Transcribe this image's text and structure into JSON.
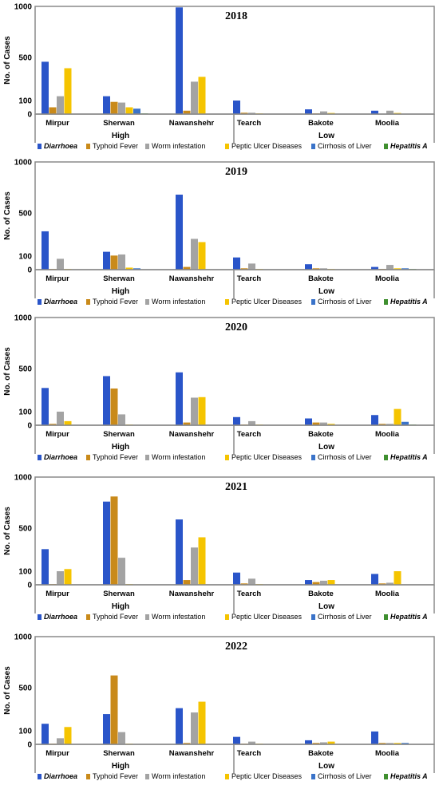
{
  "figure": {
    "ylabel": "No. of Cases",
    "groups": [
      "High",
      "Low"
    ],
    "legend": [
      "Diarrhoea",
      "Typhoid Fever",
      "Worm infestation",
      "Peptic Ulcer Diseases",
      "Cirrhosis of Liver",
      "Hepatitis A"
    ],
    "legend_italic": [
      true,
      false,
      false,
      false,
      false,
      true
    ],
    "colors": [
      "#2a55c9",
      "#c98a1a",
      "#a3a3a3",
      "#f5c400",
      "#3a73c9",
      "#3f8f2f"
    ]
  },
  "chart_data": [
    {
      "type": "bar",
      "title": "2018",
      "ylabel": "No. of Cases",
      "ylim": [
        0,
        1000
      ],
      "yticks": [
        0,
        100,
        500,
        1000
      ],
      "categories": [
        "Mirpur",
        "Sherwan",
        "Nawanshehr",
        "Tearch",
        "Bakote",
        "Moolia"
      ],
      "series": [
        {
          "name": "Diarrhoea",
          "values": [
            460,
            140,
            990,
            100,
            35,
            25
          ]
        },
        {
          "name": "Typhoid Fever",
          "values": [
            50,
            90,
            25,
            10,
            5,
            3
          ]
        },
        {
          "name": "Worm infestation",
          "values": [
            140,
            85,
            275,
            10,
            20,
            25
          ]
        },
        {
          "name": "Peptic Ulcer Diseases",
          "values": [
            400,
            50,
            320,
            5,
            8,
            8
          ]
        },
        {
          "name": "Cirrhosis of Liver",
          "values": [
            0,
            40,
            0,
            0,
            0,
            0
          ]
        },
        {
          "name": "Hepatitis A",
          "values": [
            0,
            5,
            0,
            0,
            0,
            0
          ]
        }
      ]
    },
    {
      "type": "bar",
      "title": "2019",
      "ylabel": "No. of Cases",
      "ylim": [
        0,
        1000
      ],
      "yticks": [
        0,
        100,
        500,
        1000
      ],
      "categories": [
        "Mirpur",
        "Sherwan",
        "Nawanshehr",
        "Tearch",
        "Bakote",
        "Moolia"
      ],
      "series": [
        {
          "name": "Diarrhoea",
          "values": [
            330,
            140,
            680,
            90,
            40,
            20
          ]
        },
        {
          "name": "Typhoid Fever",
          "values": [
            5,
            105,
            20,
            10,
            10,
            5
          ]
        },
        {
          "name": "Worm infestation",
          "values": [
            80,
            115,
            260,
            45,
            10,
            35
          ]
        },
        {
          "name": "Peptic Ulcer Diseases",
          "values": [
            5,
            15,
            230,
            5,
            5,
            10
          ]
        },
        {
          "name": "Cirrhosis of Liver",
          "values": [
            0,
            10,
            0,
            0,
            0,
            10
          ]
        },
        {
          "name": "Hepatitis A",
          "values": [
            0,
            0,
            0,
            0,
            0,
            5
          ]
        }
      ]
    },
    {
      "type": "bar",
      "title": "2020",
      "ylabel": "No. of Cases",
      "ylim": [
        0,
        1000
      ],
      "yticks": [
        0,
        100,
        500,
        1000
      ],
      "categories": [
        "Mirpur",
        "Sherwan",
        "Nawanshehr",
        "Tearch",
        "Bakote",
        "Moolia"
      ],
      "series": [
        {
          "name": "Diarrhoea",
          "values": [
            320,
            430,
            465,
            60,
            50,
            75
          ]
        },
        {
          "name": "Typhoid Fever",
          "values": [
            10,
            315,
            20,
            5,
            20,
            10
          ]
        },
        {
          "name": "Worm infestation",
          "values": [
            100,
            80,
            230,
            30,
            20,
            10
          ]
        },
        {
          "name": "Peptic Ulcer Diseases",
          "values": [
            30,
            5,
            235,
            5,
            10,
            125
          ]
        },
        {
          "name": "Cirrhosis of Liver",
          "values": [
            0,
            0,
            0,
            0,
            0,
            25
          ]
        },
        {
          "name": "Hepatitis A",
          "values": [
            0,
            0,
            0,
            0,
            0,
            5
          ]
        }
      ]
    },
    {
      "type": "bar",
      "title": "2021",
      "ylabel": "No. of Cases",
      "ylim": [
        0,
        1000
      ],
      "yticks": [
        0,
        100,
        500,
        1000
      ],
      "categories": [
        "Mirpur",
        "Sherwan",
        "Nawanshehr",
        "Tearch",
        "Bakote",
        "Moolia"
      ],
      "series": [
        {
          "name": "Diarrhoea",
          "values": [
            305,
            760,
            585,
            90,
            35,
            80
          ]
        },
        {
          "name": "Typhoid Fever",
          "values": [
            5,
            810,
            35,
            10,
            20,
            10
          ]
        },
        {
          "name": "Worm infestation",
          "values": [
            100,
            225,
            320,
            45,
            30,
            15
          ]
        },
        {
          "name": "Peptic Ulcer Diseases",
          "values": [
            120,
            5,
            415,
            5,
            35,
            100
          ]
        },
        {
          "name": "Cirrhosis of Liver",
          "values": [
            0,
            0,
            0,
            0,
            0,
            0
          ]
        },
        {
          "name": "Hepatitis A",
          "values": [
            0,
            0,
            0,
            0,
            0,
            0
          ]
        }
      ]
    },
    {
      "type": "bar",
      "title": "2022",
      "ylabel": "No. of Cases",
      "ylim": [
        0,
        1000
      ],
      "yticks": [
        0,
        100,
        500,
        1000
      ],
      "categories": [
        "Mirpur",
        "Sherwan",
        "Nawanshehr",
        "Tearch",
        "Bakote",
        "Moolia"
      ],
      "series": [
        {
          "name": "Diarrhoea",
          "values": [
            165,
            255,
            310,
            55,
            30,
            95
          ]
        },
        {
          "name": "Typhoid Fever",
          "values": [
            5,
            620,
            10,
            5,
            10,
            10
          ]
        },
        {
          "name": "Worm infestation",
          "values": [
            45,
            90,
            270,
            20,
            15,
            10
          ]
        },
        {
          "name": "Peptic Ulcer Diseases",
          "values": [
            135,
            5,
            370,
            5,
            20,
            10
          ]
        },
        {
          "name": "Cirrhosis of Liver",
          "values": [
            0,
            0,
            0,
            0,
            0,
            10
          ]
        },
        {
          "name": "Hepatitis A",
          "values": [
            0,
            0,
            0,
            0,
            0,
            0
          ]
        }
      ]
    }
  ]
}
